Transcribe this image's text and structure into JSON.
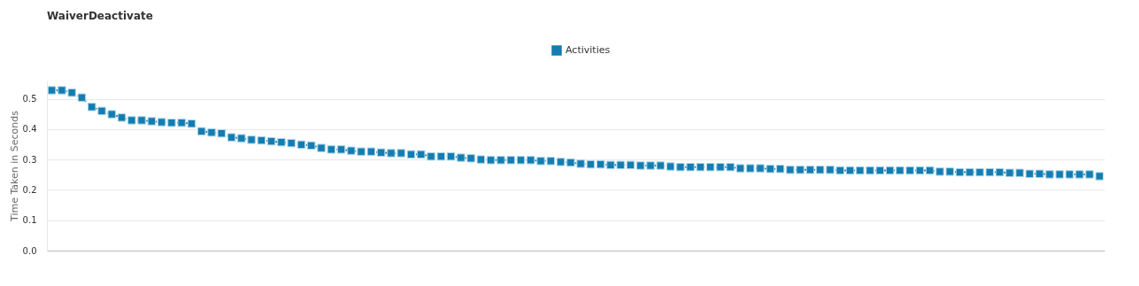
{
  "chart_data": {
    "type": "line",
    "title": "WaiverDeactivate",
    "ylabel": "Time Taken in Seconds",
    "categories": [
      null,
      null,
      null,
      null,
      null,
      null,
      null,
      null,
      null,
      null,
      null,
      null,
      null,
      null,
      null,
      null,
      null,
      null,
      null,
      null,
      null,
      null,
      null,
      null,
      null,
      null,
      null,
      null,
      null,
      null,
      null,
      null,
      null,
      null,
      null,
      null,
      null,
      null,
      null,
      null,
      null,
      null,
      null,
      null,
      null,
      null,
      null,
      null,
      null,
      null,
      null,
      null,
      null,
      null,
      null,
      null,
      null,
      null,
      null,
      null,
      null,
      null,
      null,
      null,
      null,
      null,
      null,
      null,
      null,
      null,
      null,
      null,
      null,
      null,
      null,
      null,
      null,
      null,
      null,
      null,
      null,
      null,
      null,
      null,
      null,
      null,
      null,
      null,
      null,
      null,
      null,
      null,
      null,
      null,
      null,
      null,
      null,
      null,
      null,
      null,
      null,
      null,
      null,
      null,
      null,
      null
    ],
    "series": [
      {
        "name": "Activities",
        "color": "#157cb0",
        "values": [
          0.528,
          0.528,
          0.52,
          0.504,
          0.473,
          0.46,
          0.449,
          0.438,
          0.429,
          0.429,
          0.426,
          0.423,
          0.421,
          0.421,
          0.418,
          0.393,
          0.389,
          0.386,
          0.373,
          0.37,
          0.365,
          0.363,
          0.36,
          0.357,
          0.354,
          0.349,
          0.346,
          0.338,
          0.333,
          0.333,
          0.329,
          0.326,
          0.326,
          0.323,
          0.321,
          0.321,
          0.317,
          0.317,
          0.31,
          0.31,
          0.31,
          0.306,
          0.304,
          0.3,
          0.298,
          0.298,
          0.298,
          0.298,
          0.298,
          0.295,
          0.295,
          0.292,
          0.29,
          0.286,
          0.284,
          0.284,
          0.282,
          0.282,
          0.282,
          0.28,
          0.28,
          0.28,
          0.277,
          0.275,
          0.275,
          0.275,
          0.275,
          0.275,
          0.275,
          0.271,
          0.271,
          0.271,
          0.269,
          0.269,
          0.266,
          0.266,
          0.266,
          0.266,
          0.266,
          0.264,
          0.264,
          0.264,
          0.264,
          0.264,
          0.264,
          0.264,
          0.264,
          0.264,
          0.264,
          0.26,
          0.26,
          0.258,
          0.258,
          0.258,
          0.258,
          0.258,
          0.256,
          0.256,
          0.253,
          0.253,
          0.251,
          0.251,
          0.251,
          0.251,
          0.251,
          0.245
        ]
      }
    ],
    "ylim": [
      0,
      0.56
    ],
    "yticks": [
      {
        "value": 0,
        "label": "0.0"
      },
      {
        "value": 0.1,
        "label": "0.1"
      },
      {
        "value": 0.2,
        "label": "0.2"
      },
      {
        "value": 0.3,
        "label": "0.3"
      },
      {
        "value": 0.4,
        "label": "0.4"
      },
      {
        "value": 0.5,
        "label": "0.5"
      }
    ],
    "grid": "y",
    "legend": "top",
    "marker": "square",
    "line_style": "dotted"
  }
}
